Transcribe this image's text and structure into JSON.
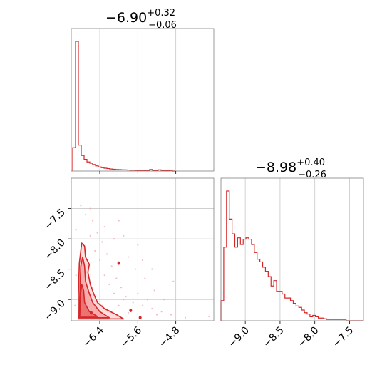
{
  "colors": {
    "primary": "#d62728",
    "light": "#f4a3a3",
    "fill": "#f7b6b6",
    "grid": "#c8c8c8",
    "frame": "#808080"
  },
  "chart_data": [
    {
      "type": "histogram",
      "panel": "top-left",
      "title_main": "−6.90",
      "title_sup": "+0.32",
      "title_sub": "−0.06",
      "xlim": [
        -7.0,
        -4.0
      ],
      "x_ticks": [
        -6.4,
        -5.6,
        -4.8
      ],
      "show_tick_labels": false,
      "grid": true,
      "bin_start": -6.97,
      "bin_width": 0.06,
      "values": [
        0.18,
        1.0,
        0.2,
        0.12,
        0.09,
        0.07,
        0.06,
        0.05,
        0.04,
        0.032,
        0.026,
        0.022,
        0.019,
        0.016,
        0.014,
        0.012,
        0.011,
        0.01,
        0.009,
        0.008,
        0.007,
        0.007,
        0.006,
        0.005,
        0.005,
        0.004,
        0.004,
        0.012,
        0.004,
        0.003,
        0.009,
        0.003,
        0.002,
        0.002,
        0.006,
        0.0
      ]
    },
    {
      "type": "histogram",
      "panel": "bottom-right",
      "title_main": "−8.98",
      "title_sup": "+0.40",
      "title_sub": "−0.26",
      "xlim": [
        -9.35,
        -7.3
      ],
      "x_ticks": [
        -9.0,
        -8.5,
        -8.0,
        -7.5
      ],
      "x_tick_labels": [
        "−9.0",
        "−8.5",
        "−8.0",
        "−7.5"
      ],
      "grid": true,
      "bin_start": -9.35,
      "bin_width": 0.04,
      "values": [
        0.15,
        0.55,
        0.97,
        0.76,
        0.65,
        0.55,
        0.62,
        0.57,
        0.61,
        0.62,
        0.61,
        0.57,
        0.51,
        0.46,
        0.44,
        0.4,
        0.37,
        0.33,
        0.26,
        0.3,
        0.22,
        0.22,
        0.2,
        0.17,
        0.17,
        0.15,
        0.13,
        0.11,
        0.1,
        0.08,
        0.06,
        0.05,
        0.03,
        0.04,
        0.03,
        0.02,
        0.02,
        0.015,
        0.01,
        0.01,
        0.01,
        0.01,
        0.01,
        0.01,
        0.01,
        0.0,
        0.0,
        0.0,
        0.0,
        0.0,
        0.0
      ]
    },
    {
      "type": "scatter",
      "panel": "bottom-left",
      "xlim": [
        -7.0,
        -4.0
      ],
      "ylim": [
        -9.35,
        -7.0
      ],
      "x_ticks": [
        -6.4,
        -5.6,
        -4.8
      ],
      "x_tick_labels": [
        "−6.4",
        "−5.6",
        "−4.8"
      ],
      "y_ticks": [
        -7.5,
        -8.0,
        -8.5,
        -9.0
      ],
      "y_tick_labels": [
        "−7.5",
        "−8.0",
        "−8.5",
        "−9.0"
      ],
      "grid": true,
      "density_contours": [
        {
          "level": "outer",
          "points": [
            [
              -6.85,
              -9.32
            ],
            [
              -6.85,
              -8.9
            ],
            [
              -6.83,
              -8.4
            ],
            [
              -6.78,
              -8.07
            ],
            [
              -6.72,
              -8.12
            ],
            [
              -6.7,
              -8.3
            ],
            [
              -6.62,
              -8.42
            ],
            [
              -6.65,
              -8.55
            ],
            [
              -6.6,
              -8.75
            ],
            [
              -6.52,
              -8.92
            ],
            [
              -6.45,
              -9.05
            ],
            [
              -6.3,
              -9.15
            ],
            [
              -6.05,
              -9.25
            ],
            [
              -5.9,
              -9.32
            ]
          ]
        },
        {
          "level": "middle",
          "points": [
            [
              -6.83,
              -9.3
            ],
            [
              -6.82,
              -8.9
            ],
            [
              -6.8,
              -8.45
            ],
            [
              -6.76,
              -8.3
            ],
            [
              -6.72,
              -8.45
            ],
            [
              -6.7,
              -8.7
            ],
            [
              -6.62,
              -8.9
            ],
            [
              -6.55,
              -9.05
            ],
            [
              -6.4,
              -9.2
            ],
            [
              -6.2,
              -9.3
            ]
          ]
        },
        {
          "level": "inner",
          "points": [
            [
              -6.82,
              -9.28
            ],
            [
              -6.81,
              -8.95
            ],
            [
              -6.78,
              -8.75
            ],
            [
              -6.74,
              -8.85
            ],
            [
              -6.72,
              -9.05
            ],
            [
              -6.62,
              -9.2
            ],
            [
              -6.45,
              -9.28
            ]
          ]
        }
      ],
      "islands": [
        [
          -6.0,
          -8.4
        ],
        [
          -5.55,
          -9.3
        ],
        [
          -6.58,
          -9.22
        ],
        [
          -5.75,
          -9.18
        ]
      ],
      "points": [
        [
          -6.8,
          -7.45
        ],
        [
          -6.7,
          -7.6
        ],
        [
          -6.9,
          -7.85
        ],
        [
          -6.6,
          -7.95
        ],
        [
          -6.75,
          -8.1
        ],
        [
          -6.5,
          -8.2
        ],
        [
          -6.4,
          -8.35
        ],
        [
          -6.3,
          -8.6
        ],
        [
          -6.2,
          -8.75
        ],
        [
          -6.1,
          -8.9
        ],
        [
          -5.9,
          -9.0
        ],
        [
          -5.7,
          -9.05
        ],
        [
          -5.5,
          -9.1
        ],
        [
          -5.3,
          -9.15
        ],
        [
          -5.1,
          -9.2
        ],
        [
          -4.9,
          -9.25
        ],
        [
          -4.6,
          -9.3
        ],
        [
          -4.1,
          -9.28
        ],
        [
          -6.55,
          -7.7
        ],
        [
          -6.45,
          -7.9
        ],
        [
          -6.35,
          -8.05
        ],
        [
          -6.25,
          -8.25
        ],
        [
          -6.15,
          -8.45
        ],
        [
          -6.05,
          -8.65
        ],
        [
          -5.95,
          -8.8
        ],
        [
          -5.85,
          -8.95
        ],
        [
          -5.65,
          -8.5
        ],
        [
          -5.45,
          -8.65
        ],
        [
          -5.25,
          -8.85
        ],
        [
          -5.05,
          -9.0
        ],
        [
          -4.85,
          -8.7
        ],
        [
          -5.8,
          -8.3
        ],
        [
          -5.6,
          -8.1
        ],
        [
          -6.65,
          -8.5
        ],
        [
          -6.55,
          -8.8
        ],
        [
          -6.45,
          -9.0
        ],
        [
          -6.35,
          -9.1
        ],
        [
          -6.25,
          -9.2
        ],
        [
          -6.0,
          -9.1
        ],
        [
          -5.8,
          -9.22
        ],
        [
          -5.6,
          -8.9
        ],
        [
          -5.4,
          -9.0
        ],
        [
          -5.2,
          -9.25
        ],
        [
          -6.9,
          -8.6
        ],
        [
          -6.92,
          -9.1
        ],
        [
          -6.6,
          -7.5
        ],
        [
          -6.3,
          -7.8
        ],
        [
          -5.9,
          -7.95
        ],
        [
          -5.5,
          -8.35
        ],
        [
          -5.3,
          -8.5
        ],
        [
          -6.1,
          -8.0
        ],
        [
          -6.0,
          -7.7
        ]
      ]
    }
  ]
}
